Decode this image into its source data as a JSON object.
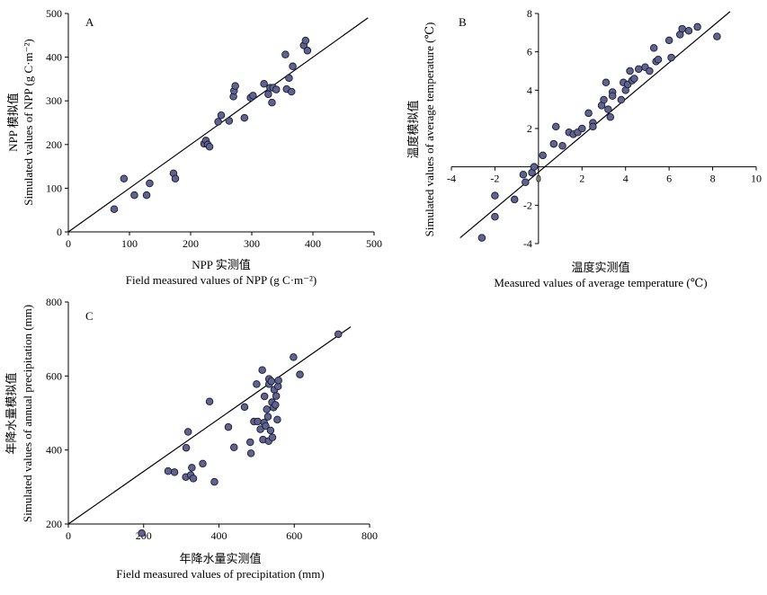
{
  "chart_data": [
    {
      "type": "scatter",
      "panel_label": "A",
      "xlabel_cn": "NPP 实测值",
      "xlabel_en": "Field measured values of NPP (g C·m⁻²)",
      "ylabel_cn": "NPP 模拟值",
      "ylabel_en": "Simulated values of NPP (g C·m⁻²)",
      "xlim": [
        0,
        500
      ],
      "ylim": [
        0,
        500
      ],
      "xticks": [
        "0",
        "100",
        "200",
        "300",
        "400",
        "500"
      ],
      "yticks": [
        "0",
        "100",
        "200",
        "300",
        "400",
        "500"
      ],
      "line": {
        "x": [
          0,
          490
        ],
        "y": [
          0,
          490
        ]
      },
      "points": [
        [
          75,
          52
        ],
        [
          91,
          122
        ],
        [
          108,
          84
        ],
        [
          128,
          84
        ],
        [
          133,
          111
        ],
        [
          172,
          134
        ],
        [
          175,
          122
        ],
        [
          222,
          202
        ],
        [
          225,
          209
        ],
        [
          228,
          200
        ],
        [
          231,
          195
        ],
        [
          245,
          252
        ],
        [
          250,
          267
        ],
        [
          263,
          254
        ],
        [
          270,
          310
        ],
        [
          271,
          323
        ],
        [
          273,
          334
        ],
        [
          288,
          261
        ],
        [
          298,
          307
        ],
        [
          302,
          312
        ],
        [
          320,
          339
        ],
        [
          327,
          315
        ],
        [
          330,
          330
        ],
        [
          333,
          296
        ],
        [
          335,
          330
        ],
        [
          340,
          326
        ],
        [
          355,
          406
        ],
        [
          357,
          327
        ],
        [
          361,
          352
        ],
        [
          365,
          321
        ],
        [
          367,
          379
        ],
        [
          385,
          427
        ],
        [
          388,
          438
        ],
        [
          391,
          415
        ]
      ],
      "color": "#5f6390"
    },
    {
      "type": "scatter",
      "panel_label": "B",
      "xlabel_cn": "温度实测值",
      "xlabel_en": "Measured values of average temperature (℃)",
      "ylabel_cn": "温度模拟值",
      "ylabel_en": "Simulated values of average temperature (℃)",
      "xlim": [
        -4,
        10
      ],
      "ylim": [
        -4,
        8
      ],
      "xticks": [
        "-4",
        "-2",
        "0",
        "2",
        "4",
        "6",
        "8",
        "10"
      ],
      "yticks": [
        "-4",
        "-2",
        "0",
        "2",
        "4",
        "6",
        "8"
      ],
      "line": {
        "x": [
          -3.6,
          8.8
        ],
        "y": [
          -3.7,
          8.1
        ]
      },
      "points": [
        [
          -2.6,
          -3.7
        ],
        [
          -2.0,
          -1.5
        ],
        [
          -2.0,
          -2.6
        ],
        [
          -1.1,
          -1.7
        ],
        [
          -0.7,
          -0.4
        ],
        [
          -0.6,
          -0.8
        ],
        [
          -0.3,
          -0.3
        ],
        [
          -0.2,
          0.0
        ],
        [
          0.2,
          0.6
        ],
        [
          0.7,
          1.2
        ],
        [
          0.8,
          2.1
        ],
        [
          1.1,
          1.1
        ],
        [
          1.4,
          1.8
        ],
        [
          1.6,
          1.7
        ],
        [
          1.8,
          1.8
        ],
        [
          2.0,
          2.0
        ],
        [
          2.3,
          2.8
        ],
        [
          2.5,
          2.3
        ],
        [
          2.5,
          2.1
        ],
        [
          2.9,
          3.2
        ],
        [
          3.0,
          3.5
        ],
        [
          3.1,
          4.4
        ],
        [
          3.2,
          3.0
        ],
        [
          3.3,
          2.6
        ],
        [
          3.4,
          3.9
        ],
        [
          3.4,
          3.7
        ],
        [
          3.8,
          3.5
        ],
        [
          3.9,
          4.4
        ],
        [
          4.0,
          4.0
        ],
        [
          4.1,
          4.3
        ],
        [
          4.2,
          5.0
        ],
        [
          4.3,
          4.5
        ],
        [
          4.4,
          4.6
        ],
        [
          4.6,
          5.1
        ],
        [
          4.9,
          5.2
        ],
        [
          5.1,
          5.0
        ],
        [
          5.3,
          6.2
        ],
        [
          5.4,
          5.5
        ],
        [
          5.5,
          5.6
        ],
        [
          6.0,
          6.6
        ],
        [
          6.1,
          5.7
        ],
        [
          6.5,
          6.9
        ],
        [
          6.6,
          7.2
        ],
        [
          6.9,
          7.1
        ],
        [
          7.3,
          7.3
        ],
        [
          8.2,
          6.8
        ]
      ],
      "color": "#5f6390"
    },
    {
      "type": "scatter",
      "panel_label": "C",
      "xlabel_cn": "年降水量实测值",
      "xlabel_en": "Field measured values of precipitation (mm)",
      "ylabel_cn": "年降水量模拟值",
      "ylabel_en": "Simulated values of annual precipitation (mm)",
      "xlim": [
        0,
        800
      ],
      "ylim": [
        200,
        800
      ],
      "xticks": [
        "0",
        "200",
        "400",
        "600",
        "800"
      ],
      "yticks": [
        "200",
        "400",
        "600",
        "800"
      ],
      "line": {
        "x": [
          0,
          750
        ],
        "y": [
          200,
          733
        ]
      },
      "points": [
        [
          195,
          175
        ],
        [
          265,
          343
        ],
        [
          282,
          340
        ],
        [
          312,
          327
        ],
        [
          313,
          406
        ],
        [
          318,
          449
        ],
        [
          325,
          332
        ],
        [
          328,
          352
        ],
        [
          332,
          323
        ],
        [
          357,
          363
        ],
        [
          375,
          531
        ],
        [
          388,
          314
        ],
        [
          425,
          462
        ],
        [
          440,
          407
        ],
        [
          468,
          516
        ],
        [
          483,
          421
        ],
        [
          485,
          391
        ],
        [
          493,
          477
        ],
        [
          500,
          578
        ],
        [
          503,
          477
        ],
        [
          510,
          456
        ],
        [
          515,
          616
        ],
        [
          517,
          428
        ],
        [
          520,
          474
        ],
        [
          521,
          545
        ],
        [
          524,
          465
        ],
        [
          527,
          510
        ],
        [
          530,
          490
        ],
        [
          532,
          424
        ],
        [
          533,
          578
        ],
        [
          533,
          592
        ],
        [
          537,
          453
        ],
        [
          539,
          586
        ],
        [
          541,
          529
        ],
        [
          542,
          434
        ],
        [
          545,
          515
        ],
        [
          547,
          563
        ],
        [
          550,
          522
        ],
        [
          552,
          546
        ],
        [
          555,
          482
        ],
        [
          557,
          572
        ],
        [
          558,
          588
        ],
        [
          598,
          651
        ],
        [
          615,
          604
        ],
        [
          717,
          713
        ]
      ],
      "color": "#5f6390"
    }
  ]
}
